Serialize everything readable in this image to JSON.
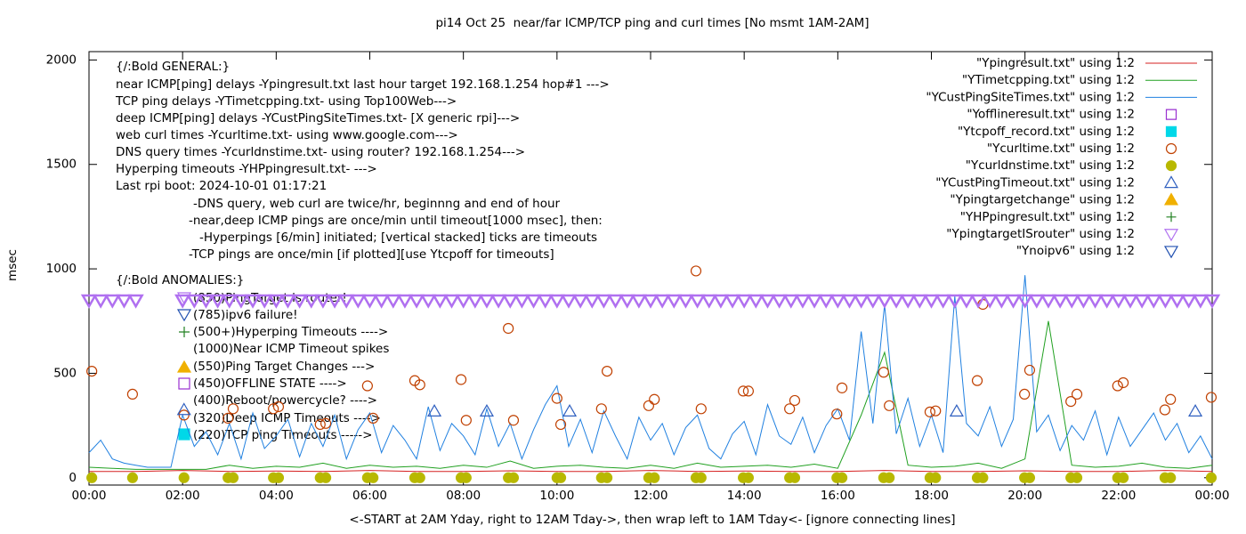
{
  "chart_data": {
    "type": "line",
    "title": "pi14 Oct 25  near/far ICMP/TCP ping and curl times [No msmt 1AM-2AM]",
    "x_label": "<-START at 2AM Yday, right to 12AM Tday->, then wrap left to 1AM Tday<- [ignore connecting lines]",
    "y_label": "msec",
    "xlim": [
      0,
      24
    ],
    "xticks": [
      {
        "value": 0,
        "label": "00:00"
      },
      {
        "value": 2,
        "label": "02:00"
      },
      {
        "value": 4,
        "label": "04:00"
      },
      {
        "value": 6,
        "label": "06:00"
      },
      {
        "value": 8,
        "label": "08:00"
      },
      {
        "value": 10,
        "label": "10:00"
      },
      {
        "value": 12,
        "label": "12:00"
      },
      {
        "value": 14,
        "label": "14:00"
      },
      {
        "value": 16,
        "label": "16:00"
      },
      {
        "value": 18,
        "label": "18:00"
      },
      {
        "value": 20,
        "label": "20:00"
      },
      {
        "value": 22,
        "label": "22:00"
      },
      {
        "value": 24,
        "label": "00:00"
      }
    ],
    "ylim": [
      -35,
      2040
    ],
    "yticks": [
      0,
      500,
      1000,
      1500,
      2000
    ],
    "grid": false,
    "legend": "top-right",
    "annotations": [
      "{/:Bold GENERAL:}",
      "near ICMP[ping] delays -Ypingresult.txt last hour target 192.168.1.254 hop#1 --->",
      "TCP ping delays -YTimetcpping.txt- using Top100Web--->",
      "deep ICMP[ping] delays -YCustPingSiteTimes.txt- [X generic rpi]--->",
      "web curl times -Ycurltime.txt- using www.google.com--->",
      "DNS query times -Ycurldnstime.txt- using router? 192.168.1.254--->",
      "Hyperping timeouts -YHPpingresult.txt- --->",
      "Last rpi boot: 2024-10-01 01:17:21",
      "-DNS query, web curl are twice/hr, beginnng and end of hour",
      "-near,deep ICMP pings are once/min until timeout[1000 msec], then:",
      "-Hyperpings [6/min] initiated; [vertical stacked] ticks are timeouts",
      "-TCP pings are once/min [if plotted][use Ytcpoff for timeouts]",
      "{/:Bold ANOMALIES:}",
      "(850)PingTarget is router!",
      "(785)ipv6 failure!",
      "(500+)Hyperping Timeouts ---->",
      "(1000)Near ICMP Timeout spikes",
      "(550)Ping Target Changes --->",
      "(450)OFFLINE STATE ---->",
      "(400)Reboot/powercycle? ---->",
      "(320)Deep ICMP Timeouts ---->",
      "(220)TCP ping Timeouts ----->"
    ],
    "series": [
      {
        "name": "\"Ypingresult.txt\" using 1:2",
        "color": "#d62020",
        "style": "line",
        "x": [
          0,
          1,
          2,
          3,
          4,
          5,
          6,
          7,
          8,
          9,
          10,
          11,
          12,
          13,
          14,
          15,
          16,
          17,
          18,
          19,
          20,
          21,
          22,
          23,
          24
        ],
        "values": [
          30,
          30,
          35,
          30,
          32,
          30,
          35,
          30,
          30,
          33,
          30,
          30,
          35,
          30,
          32,
          30,
          30,
          35,
          30,
          30,
          33,
          30,
          30,
          35,
          30
        ]
      },
      {
        "name": "\"YTimetcpping.txt\" using 1:2",
        "color": "#20a020",
        "style": "line",
        "x": [
          0,
          0.5,
          1,
          1.5,
          2,
          2.5,
          3,
          3.5,
          4,
          4.5,
          5,
          5.5,
          6,
          6.5,
          7,
          7.5,
          8,
          8.5,
          9,
          9.5,
          10,
          10.5,
          11,
          11.5,
          12,
          12.5,
          13,
          13.5,
          14,
          14.5,
          15,
          15.5,
          16,
          16.5,
          17,
          17.5,
          18,
          18.5,
          19,
          19.5,
          20,
          20.5,
          21,
          21.5,
          22,
          22.5,
          23,
          23.5,
          24
        ],
        "values": [
          50,
          45,
          40,
          40,
          40,
          40,
          60,
          45,
          55,
          50,
          70,
          45,
          60,
          50,
          55,
          45,
          60,
          50,
          80,
          45,
          55,
          60,
          50,
          45,
          60,
          45,
          70,
          50,
          55,
          60,
          50,
          65,
          45,
          300,
          600,
          60,
          50,
          55,
          70,
          45,
          90,
          750,
          60,
          50,
          55,
          70,
          50,
          45,
          60
        ]
      },
      {
        "name": "\"YCustPingSiteTimes.txt\" using 1:2",
        "color": "#2080e0",
        "style": "line",
        "x": [
          0,
          0.25,
          0.5,
          0.75,
          1,
          1.25,
          1.5,
          1.75,
          2,
          2.25,
          2.5,
          2.75,
          3,
          3.25,
          3.5,
          3.75,
          4,
          4.25,
          4.5,
          4.75,
          5,
          5.25,
          5.5,
          5.75,
          6,
          6.25,
          6.5,
          6.75,
          7,
          7.25,
          7.5,
          7.75,
          8,
          8.25,
          8.5,
          8.75,
          9,
          9.25,
          9.5,
          9.75,
          10,
          10.25,
          10.5,
          10.75,
          11,
          11.25,
          11.5,
          11.75,
          12,
          12.25,
          12.5,
          12.75,
          13,
          13.25,
          13.5,
          13.75,
          14,
          14.25,
          14.5,
          14.75,
          15,
          15.25,
          15.5,
          15.75,
          16,
          16.25,
          16.5,
          16.75,
          17,
          17.25,
          17.5,
          17.75,
          18,
          18.25,
          18.5,
          18.75,
          19,
          19.25,
          19.5,
          19.75,
          20,
          20.25,
          20.5,
          20.75,
          21,
          21.25,
          21.5,
          21.75,
          22,
          22.25,
          22.5,
          22.75,
          23,
          23.25,
          23.5,
          23.75,
          24
        ],
        "values": [
          120,
          180,
          90,
          70,
          60,
          50,
          50,
          50,
          300,
          150,
          220,
          110,
          260,
          90,
          310,
          140,
          200,
          280,
          100,
          260,
          150,
          300,
          90,
          230,
          310,
          120,
          250,
          180,
          90,
          340,
          130,
          260,
          200,
          110,
          330,
          150,
          260,
          90,
          230,
          350,
          440,
          150,
          280,
          120,
          320,
          200,
          90,
          290,
          180,
          260,
          110,
          240,
          300,
          140,
          90,
          210,
          270,
          110,
          350,
          200,
          160,
          290,
          120,
          250,
          330,
          180,
          700,
          260,
          830,
          210,
          380,
          150,
          300,
          120,
          870,
          260,
          200,
          340,
          150,
          280,
          970,
          220,
          300,
          130,
          250,
          180,
          320,
          110,
          290,
          150,
          230,
          310,
          180,
          260,
          120,
          200,
          90
        ]
      },
      {
        "name": "\"Yofflineresult.txt\" using 1:2",
        "color": "#9a30d0",
        "style": "points",
        "marker": "square",
        "filled": false,
        "x": [],
        "values": []
      },
      {
        "name": "\"Ytcpoff_record.txt\" using 1:2",
        "color": "#00d8e8",
        "style": "points",
        "marker": "square",
        "filled": true,
        "x": [],
        "values": []
      },
      {
        "name": "\"Ycurltime.txt\" using 1:2",
        "color": "#c04000",
        "style": "points",
        "marker": "circle",
        "filled": false,
        "x": [
          0.06,
          0.93,
          2.03,
          2.97,
          3.08,
          3.94,
          4.05,
          4.94,
          5.06,
          5.95,
          6.07,
          6.96,
          7.07,
          7.95,
          8.06,
          8.96,
          9.07,
          10,
          10.08,
          10.95,
          11.07,
          11.96,
          12.08,
          12.97,
          13.08,
          13.98,
          14.09,
          14.97,
          15.08,
          15.98,
          16.09,
          16.98,
          17.1,
          17.97,
          18.09,
          18.98,
          19.1,
          19.99,
          20.1,
          20.98,
          21.11,
          21.98,
          22.1,
          22.99,
          23.11,
          23.98
        ],
        "values": [
          510,
          400,
          300,
          285,
          330,
          330,
          340,
          255,
          260,
          440,
          285,
          465,
          445,
          470,
          275,
          715,
          275,
          380,
          255,
          330,
          510,
          345,
          375,
          990,
          330,
          415,
          415,
          330,
          370,
          305,
          430,
          505,
          345,
          315,
          320,
          465,
          830,
          400,
          515,
          365,
          400,
          440,
          455,
          325,
          375,
          385
        ]
      },
      {
        "name": "\"Ycurldnstime.txt\" using 1:2",
        "color": "#b8b800",
        "style": "points",
        "marker": "circle",
        "filled": true,
        "x": [
          0.06,
          0.93,
          2.03,
          2.97,
          3.08,
          3.94,
          4.05,
          4.94,
          5.06,
          5.95,
          6.07,
          6.96,
          7.07,
          7.95,
          8.06,
          8.96,
          9.07,
          10,
          10.08,
          10.95,
          11.07,
          11.96,
          12.08,
          12.97,
          13.08,
          13.98,
          14.09,
          14.97,
          15.08,
          15.98,
          16.09,
          16.98,
          17.1,
          17.97,
          18.09,
          18.98,
          19.1,
          19.99,
          20.1,
          20.98,
          21.11,
          21.98,
          22.1,
          22.99,
          23.11,
          23.98
        ],
        "values": [
          0,
          0,
          0,
          0,
          0,
          0,
          0,
          0,
          0,
          0,
          0,
          0,
          0,
          0,
          0,
          0,
          0,
          0,
          0,
          0,
          0,
          0,
          0,
          0,
          0,
          0,
          0,
          0,
          0,
          0,
          0,
          0,
          0,
          0,
          0,
          0,
          0,
          0,
          0,
          0,
          0,
          0,
          0,
          0,
          0,
          0
        ]
      },
      {
        "name": "\"YCustPingTimeout.txt\" using 1:2",
        "color": "#3060c0",
        "style": "points",
        "marker": "triangle-up",
        "filled": false,
        "x": [
          2.03,
          7.38,
          8.5,
          10.27,
          18.54,
          23.64
        ],
        "values": [
          325,
          318,
          318,
          318,
          318,
          318
        ]
      },
      {
        "name": "\"Ypingtargetchange\" using 1:2",
        "color": "#f0b000",
        "style": "points",
        "marker": "triangle-up",
        "filled": true,
        "x": [],
        "values": []
      },
      {
        "name": "\"YHPpingresult.txt\" using 1:2",
        "color": "#208020",
        "style": "points",
        "marker": "plus",
        "filled": false,
        "x": [],
        "values": []
      },
      {
        "name": "\"YpingtargetISrouter\" using 1:2",
        "color": "#b070f0",
        "style": "points",
        "marker": "triangle-down",
        "filled": false,
        "x": [
          0,
          0.25,
          0.5,
          0.75,
          1,
          2,
          2.25,
          2.5,
          2.75,
          3,
          3.25,
          3.5,
          3.75,
          4,
          4.25,
          4.5,
          4.75,
          5,
          5.25,
          5.5,
          5.75,
          6,
          6.25,
          6.5,
          6.75,
          7,
          7.25,
          7.5,
          7.75,
          8,
          8.25,
          8.5,
          8.75,
          9,
          9.25,
          9.5,
          9.75,
          10,
          10.25,
          10.5,
          10.75,
          11,
          11.25,
          11.5,
          11.75,
          12,
          12.25,
          12.5,
          12.75,
          13,
          13.25,
          13.5,
          13.75,
          14,
          14.25,
          14.5,
          14.75,
          15,
          15.25,
          15.5,
          15.75,
          16,
          16.25,
          16.5,
          16.75,
          17,
          17.25,
          17.5,
          17.75,
          18,
          18.25,
          18.5,
          18.75,
          19,
          19.25,
          19.5,
          19.75,
          20,
          20.25,
          20.5,
          20.75,
          21,
          21.25,
          21.5,
          21.75,
          22,
          22.25,
          22.5,
          22.75,
          23,
          23.25,
          23.5,
          23.75,
          24
        ],
        "values": [
          850,
          850,
          850,
          850,
          850,
          850,
          850,
          850,
          850,
          850,
          850,
          850,
          850,
          850,
          850,
          850,
          850,
          850,
          850,
          850,
          850,
          850,
          850,
          850,
          850,
          850,
          850,
          850,
          850,
          850,
          850,
          850,
          850,
          850,
          850,
          850,
          850,
          850,
          850,
          850,
          850,
          850,
          850,
          850,
          850,
          850,
          850,
          850,
          850,
          850,
          850,
          850,
          850,
          850,
          850,
          850,
          850,
          850,
          850,
          850,
          850,
          850,
          850,
          850,
          850,
          850,
          850,
          850,
          850,
          850,
          850,
          850,
          850,
          850,
          850,
          850,
          850,
          850,
          850,
          850,
          850,
          850,
          850,
          850,
          850,
          850,
          850,
          850,
          850,
          850,
          850,
          850,
          850,
          850
        ]
      },
      {
        "name": "\"Ynoipv6\" using 1:2",
        "color": "#2050b0",
        "style": "points",
        "marker": "triangle-down",
        "filled": false,
        "x": [],
        "values": []
      }
    ]
  }
}
